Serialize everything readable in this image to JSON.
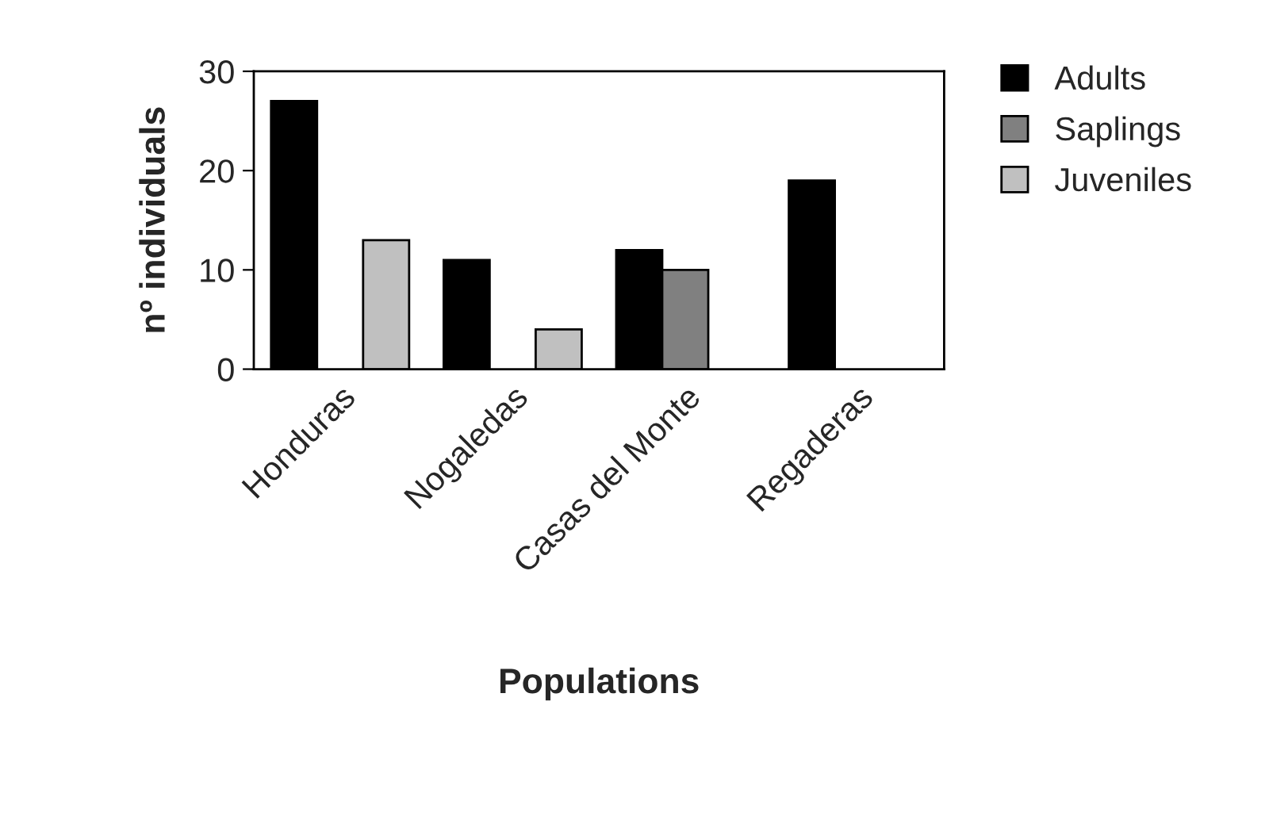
{
  "chart_data": {
    "type": "bar",
    "xlabel": "Populations",
    "ylabel": "nº individuals",
    "categories": [
      "Honduras",
      "Nogaledas",
      "Casas del Monte",
      "Regaderas"
    ],
    "series": [
      {
        "name": "Adults",
        "color": "#000000",
        "values": [
          27,
          11,
          12,
          19
        ]
      },
      {
        "name": "Saplings",
        "color": "#808080",
        "values": [
          null,
          null,
          10,
          null
        ]
      },
      {
        "name": "Juveniles",
        "color": "#c0c0c0",
        "values": [
          13,
          4,
          null,
          null
        ]
      }
    ],
    "ylim": [
      0,
      30
    ],
    "yticks": [
      0,
      10,
      20,
      30
    ],
    "grid": false,
    "legend": "top right"
  }
}
